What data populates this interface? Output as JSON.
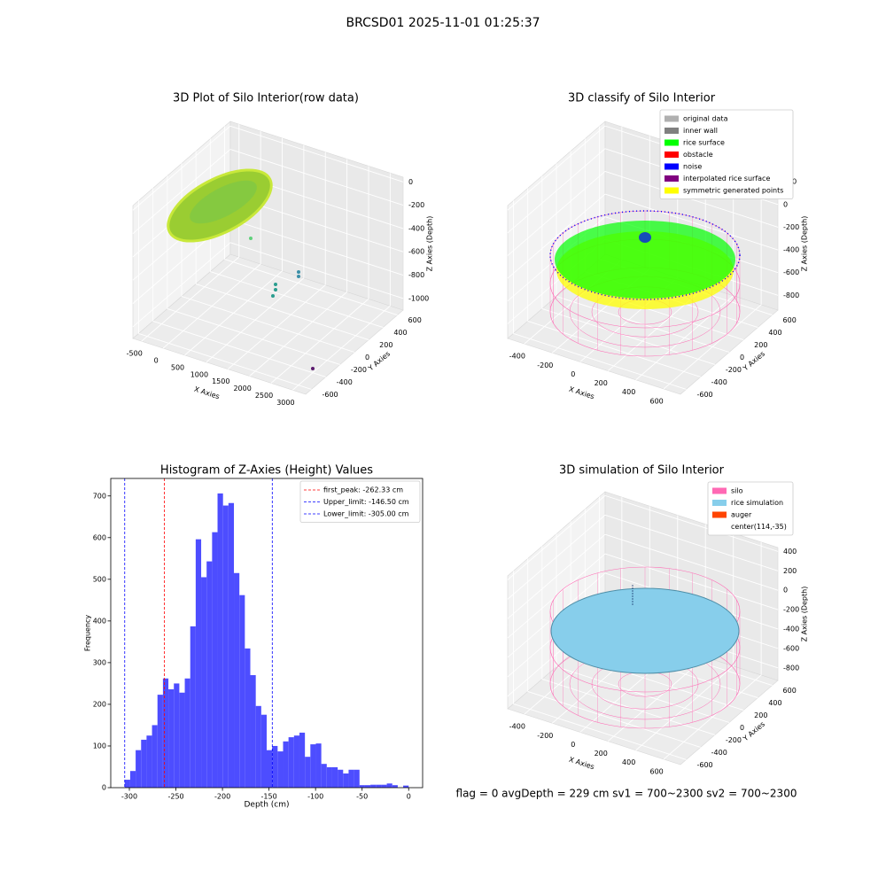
{
  "title": "BRCSD01 2025-11-01 01:25:37",
  "footer": "flag = 0     avgDepth = 229 cm  sv1 = 700~2300  sv2 = 700~2300",
  "chart_data": [
    {
      "type": "scatter3d",
      "title": "3D Plot of Silo Interior(row data)",
      "xlabel": "X Axies",
      "ylabel": "Y Axies",
      "zlabel": "Z Axies (Depth)",
      "xlim": [
        -700,
        3300
      ],
      "ylim": [
        -680,
        680
      ],
      "zlim": [
        -1100,
        40
      ],
      "xticks": [
        -500,
        0,
        500,
        1000,
        1500,
        2000,
        2500,
        3000
      ],
      "yticks": [
        -600,
        -400,
        -200,
        0,
        200,
        400,
        600
      ],
      "zticks": [
        0,
        -200,
        -400,
        -600,
        -800,
        -1000
      ]
    },
    {
      "type": "scatter3d",
      "title": "3D classify of Silo Interior",
      "xlabel": "X Axies",
      "ylabel": "Y Axies",
      "zlabel": "Z Axies (Depth)",
      "xlim": [
        -520,
        720
      ],
      "ylim": [
        -680,
        680
      ],
      "zlim": [
        -930,
        240
      ],
      "xticks": [
        -400,
        -200,
        0,
        200,
        400,
        600
      ],
      "yticks": [
        -600,
        -400,
        -200,
        0,
        200,
        400,
        600
      ],
      "zticks": [
        200,
        0,
        -200,
        -400,
        -600,
        -800
      ],
      "legend": "upper right",
      "series": [
        {
          "name": "original data",
          "color": "#b0b0b0"
        },
        {
          "name": "inner wall",
          "color": "#808080"
        },
        {
          "name": "rice surface",
          "color": "#00ff00"
        },
        {
          "name": "obstacle",
          "color": "#ff0000"
        },
        {
          "name": "noise",
          "color": "#0000ff"
        },
        {
          "name": "interpolated rice surface",
          "color": "#800080"
        },
        {
          "name": "symmetric generated points",
          "color": "#ffff00"
        }
      ]
    },
    {
      "type": "histogram",
      "title": "Histogram of Z-Axies (Height) Values",
      "xlabel": "Depth (cm)",
      "ylabel": "Frequency",
      "color": "#4d4dff",
      "xlim": [
        -320,
        15
      ],
      "ylim": [
        0,
        742
      ],
      "xticks": [
        -300,
        -250,
        -200,
        -150,
        -100,
        -50,
        0
      ],
      "yticks": [
        0,
        100,
        200,
        300,
        400,
        500,
        600,
        700
      ],
      "bins": [
        -305,
        -299.13,
        -293.27,
        -287.4,
        -281.54,
        -275.67,
        -269.81,
        -263.94,
        -258.08,
        -252.21,
        -246.35,
        -240.48,
        -234.62,
        -228.75,
        -222.88,
        -217.02,
        -211.15,
        -205.29,
        -199.42,
        -193.56,
        -187.69,
        -181.83,
        -175.96,
        -170.1,
        -164.23,
        -158.37,
        -152.5,
        -146.63,
        -140.77,
        -134.9,
        -129.04,
        -123.17,
        -117.31,
        -111.44,
        -105.58,
        -99.71,
        -93.85,
        -87.98,
        -82.12,
        -76.25,
        -70.38,
        -64.52,
        -58.65,
        -52.79,
        -46.92,
        -41.06,
        -35.19,
        -29.33,
        -23.46,
        -17.6,
        -11.73,
        -5.87,
        0
      ],
      "values": [
        19,
        40,
        90,
        115,
        125,
        150,
        223,
        262,
        236,
        250,
        228,
        262,
        387,
        596,
        505,
        543,
        613,
        706,
        677,
        683,
        515,
        462,
        334,
        270,
        196,
        175,
        90,
        100,
        87,
        111,
        121,
        125,
        132,
        74,
        104,
        106,
        57,
        49,
        49,
        43,
        34,
        43,
        43,
        6,
        6,
        7,
        7,
        7,
        10,
        6,
        0,
        5
      ],
      "legend": "upper right",
      "lines": [
        {
          "name": "first_peak: -262.33 cm",
          "value": -262.33,
          "color": "#ff0000"
        },
        {
          "name": "Upper_limit: -146.50 cm",
          "value": -146.5,
          "color": "#0000ff"
        },
        {
          "name": "Lower_limit: -305.00 cm",
          "value": -305,
          "color": "#0000ff"
        }
      ]
    },
    {
      "type": "surface3d",
      "title": "3D simulation of Silo Interior",
      "xlabel": "X Axies",
      "ylabel": "Y Axies",
      "zlabel": "Z Axies (Depth)",
      "xlim": [
        -520,
        720
      ],
      "ylim": [
        -680,
        680
      ],
      "zlim": [
        -930,
        440
      ],
      "xticks": [
        -400,
        -200,
        0,
        200,
        400,
        600
      ],
      "yticks": [
        -600,
        -400,
        -200,
        0,
        200,
        400,
        600
      ],
      "zticks": [
        400,
        200,
        0,
        -200,
        -400,
        -600,
        -800
      ],
      "legend": "upper right",
      "series": [
        {
          "name": "silo",
          "color": "#ff69b4"
        },
        {
          "name": "rice simulation",
          "color": "#87ceeb"
        },
        {
          "name": "auger",
          "color": "#ff4500"
        },
        {
          "name": "center(114,-35)"
        }
      ]
    }
  ]
}
